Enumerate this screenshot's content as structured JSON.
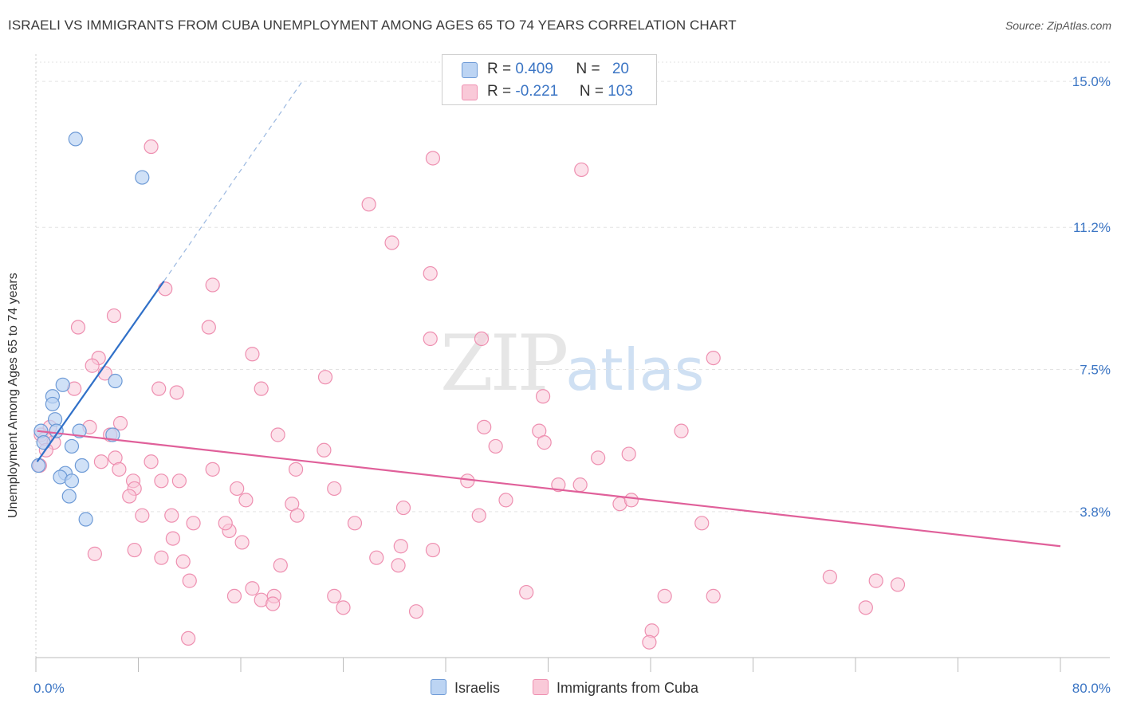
{
  "title": "ISRAELI VS IMMIGRANTS FROM CUBA UNEMPLOYMENT AMONG AGES 65 TO 74 YEARS CORRELATION CHART",
  "source": "Source: ZipAtlas.com",
  "watermark": {
    "zip": "ZIP",
    "atlas": "atlas"
  },
  "legend_top": {
    "rows": [
      {
        "r_label": "R = ",
        "r_value": "0.409",
        "n_label": "N = ",
        "n_value": "20"
      },
      {
        "r_label": "R = ",
        "r_value": "-0.221",
        "n_label": "N = ",
        "n_value": "103"
      }
    ]
  },
  "colors": {
    "israelis_fill": "#bcd4f3",
    "israelis_stroke": "#6d9ad6",
    "israelis_line": "#3070c8",
    "cuba_fill": "#f9c9d8",
    "cuba_stroke": "#ee8fb0",
    "cuba_line": "#e0609a",
    "grid": "#e3e3e3",
    "axis_label": "#3b75c4"
  },
  "chart_data": {
    "type": "scatter",
    "title": "ISRAELI VS IMMIGRANTS FROM CUBA UNEMPLOYMENT AMONG AGES 65 TO 74 YEARS CORRELATION CHART",
    "xlabel": "",
    "ylabel": "Unemployment Among Ages 65 to 74 years",
    "xlim": [
      0,
      80
    ],
    "ylim": [
      0,
      15.5
    ],
    "x_tick_labels": [
      {
        "value": 0,
        "label": "0.0%"
      },
      {
        "value": 80,
        "label": "80.0%"
      }
    ],
    "y_tick_labels": [
      {
        "value": 3.8,
        "label": "3.8%"
      },
      {
        "value": 7.5,
        "label": "7.5%"
      },
      {
        "value": 11.2,
        "label": "11.2%"
      },
      {
        "value": 15.0,
        "label": "15.0%"
      }
    ],
    "series": [
      {
        "name": "Israelis",
        "r": 0.409,
        "n": 20,
        "points": [
          [
            3.1,
            13.5
          ],
          [
            8.3,
            12.5
          ],
          [
            1.3,
            6.8
          ],
          [
            2.1,
            7.1
          ],
          [
            1.3,
            6.6
          ],
          [
            0.4,
            5.9
          ],
          [
            1.5,
            6.2
          ],
          [
            0.6,
            5.6
          ],
          [
            1.6,
            5.9
          ],
          [
            3.4,
            5.9
          ],
          [
            6.2,
            7.2
          ],
          [
            6.0,
            5.8
          ],
          [
            2.8,
            5.5
          ],
          [
            2.3,
            4.8
          ],
          [
            1.9,
            4.7
          ],
          [
            2.8,
            4.6
          ],
          [
            3.6,
            5.0
          ],
          [
            2.6,
            4.2
          ],
          [
            3.9,
            3.6
          ],
          [
            0.2,
            5.0
          ]
        ],
        "trend": {
          "x1": 0.1,
          "y1": 5.1,
          "x2": 10.0,
          "y2": 9.8,
          "dash_to_x": 20.8,
          "dash_to_y": 15.0
        }
      },
      {
        "name": "Immigrants from Cuba",
        "r": -0.221,
        "n": 103,
        "points": [
          [
            9.0,
            13.3
          ],
          [
            31.0,
            13.0
          ],
          [
            42.6,
            12.7
          ],
          [
            26.0,
            11.8
          ],
          [
            27.8,
            10.8
          ],
          [
            30.8,
            10.0
          ],
          [
            10.1,
            9.6
          ],
          [
            13.8,
            9.7
          ],
          [
            6.1,
            8.9
          ],
          [
            3.3,
            8.6
          ],
          [
            13.5,
            8.6
          ],
          [
            30.8,
            8.3
          ],
          [
            34.8,
            8.3
          ],
          [
            16.9,
            7.9
          ],
          [
            4.9,
            7.8
          ],
          [
            4.4,
            7.6
          ],
          [
            5.4,
            7.4
          ],
          [
            22.6,
            7.3
          ],
          [
            52.9,
            7.8
          ],
          [
            3.0,
            7.0
          ],
          [
            17.6,
            7.0
          ],
          [
            9.6,
            7.0
          ],
          [
            11.0,
            6.9
          ],
          [
            39.6,
            6.8
          ],
          [
            4.2,
            6.0
          ],
          [
            6.6,
            6.1
          ],
          [
            1.1,
            6.0
          ],
          [
            0.4,
            5.8
          ],
          [
            5.8,
            5.8
          ],
          [
            18.9,
            5.8
          ],
          [
            35.0,
            6.0
          ],
          [
            39.3,
            5.9
          ],
          [
            50.4,
            5.9
          ],
          [
            0.7,
            5.7
          ],
          [
            1.4,
            5.6
          ],
          [
            0.8,
            5.4
          ],
          [
            6.2,
            5.2
          ],
          [
            22.5,
            5.4
          ],
          [
            35.9,
            5.5
          ],
          [
            39.7,
            5.6
          ],
          [
            5.1,
            5.1
          ],
          [
            9.0,
            5.1
          ],
          [
            43.9,
            5.2
          ],
          [
            46.3,
            5.3
          ],
          [
            6.5,
            4.9
          ],
          [
            13.8,
            4.9
          ],
          [
            20.3,
            4.9
          ],
          [
            9.8,
            4.6
          ],
          [
            11.2,
            4.6
          ],
          [
            7.6,
            4.6
          ],
          [
            33.7,
            4.6
          ],
          [
            40.8,
            4.5
          ],
          [
            42.5,
            4.5
          ],
          [
            15.7,
            4.4
          ],
          [
            23.3,
            4.4
          ],
          [
            7.7,
            4.4
          ],
          [
            7.3,
            4.2
          ],
          [
            16.4,
            4.1
          ],
          [
            20.0,
            4.0
          ],
          [
            36.7,
            4.1
          ],
          [
            45.6,
            4.0
          ],
          [
            46.5,
            4.1
          ],
          [
            8.3,
            3.7
          ],
          [
            10.6,
            3.7
          ],
          [
            12.3,
            3.5
          ],
          [
            20.4,
            3.7
          ],
          [
            28.7,
            3.9
          ],
          [
            34.6,
            3.7
          ],
          [
            15.1,
            3.3
          ],
          [
            14.8,
            3.5
          ],
          [
            24.9,
            3.5
          ],
          [
            10.7,
            3.1
          ],
          [
            16.1,
            3.0
          ],
          [
            31.0,
            2.8
          ],
          [
            7.7,
            2.8
          ],
          [
            4.6,
            2.7
          ],
          [
            26.6,
            2.6
          ],
          [
            11.5,
            2.5
          ],
          [
            19.1,
            2.4
          ],
          [
            28.3,
            2.4
          ],
          [
            12.0,
            2.0
          ],
          [
            16.9,
            1.8
          ],
          [
            15.5,
            1.6
          ],
          [
            18.6,
            1.6
          ],
          [
            23.3,
            1.6
          ],
          [
            38.3,
            1.7
          ],
          [
            49.1,
            1.6
          ],
          [
            17.6,
            1.5
          ],
          [
            18.5,
            1.4
          ],
          [
            24.0,
            1.3
          ],
          [
            29.7,
            1.2
          ],
          [
            62.0,
            2.1
          ],
          [
            65.6,
            2.0
          ],
          [
            67.3,
            1.9
          ],
          [
            64.8,
            1.3
          ],
          [
            52.0,
            3.5
          ],
          [
            11.9,
            0.5
          ],
          [
            48.1,
            0.7
          ],
          [
            47.9,
            0.4
          ],
          [
            52.9,
            1.6
          ],
          [
            0.3,
            5.0
          ],
          [
            28.5,
            2.9
          ],
          [
            9.8,
            2.6
          ]
        ],
        "trend": {
          "x1": 0.1,
          "y1": 5.9,
          "x2": 80.0,
          "y2": 2.9
        }
      }
    ],
    "grid": true,
    "legend_position": "top-center"
  }
}
